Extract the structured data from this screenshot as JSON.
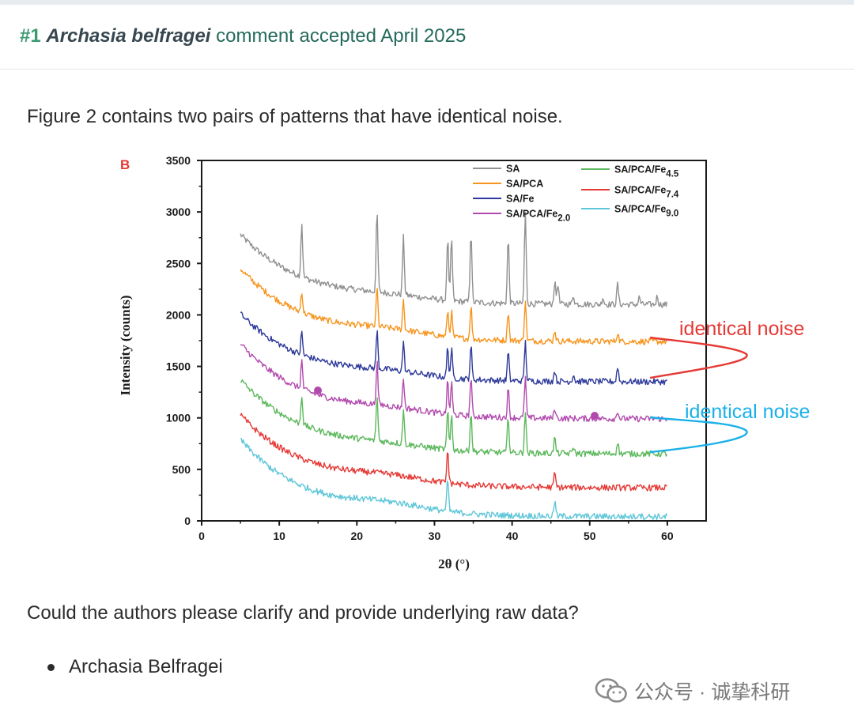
{
  "comment": {
    "number": "#1",
    "author": "Archasia belfragei",
    "status": "comment accepted April 2025"
  },
  "body": {
    "paragraph1": "Figure 2 contains two pairs of patterns that have identical noise.",
    "paragraph2": "Could the authors please clarify and provide underlying raw data?",
    "bullets": [
      "Archasia Belfragei"
    ]
  },
  "figure": {
    "panel_letter": "B",
    "annotations": [
      {
        "text": "identical noise",
        "color": "#e53935"
      },
      {
        "text": "identical noise",
        "color": "#1ab0e8"
      }
    ]
  },
  "chart_data": {
    "type": "line",
    "xlabel": "2θ (°)",
    "ylabel": "Intensity (counts)",
    "xlim": [
      0,
      65
    ],
    "ylim": [
      0,
      3500
    ],
    "xticks": [
      0,
      10,
      20,
      30,
      40,
      50,
      60
    ],
    "yticks": [
      0,
      500,
      1000,
      1500,
      2000,
      2500,
      3000,
      3500
    ],
    "legend_position": "top-right",
    "series": [
      {
        "name": "SA",
        "sub": "",
        "color": "#909090",
        "start": 2780,
        "floor": 2100,
        "bump": 40,
        "peaks": [
          [
            12.9,
            520
          ],
          [
            22.6,
            780
          ],
          [
            26.0,
            560
          ],
          [
            31.7,
            610
          ],
          [
            32.2,
            620
          ],
          [
            34.7,
            700
          ],
          [
            39.5,
            640
          ],
          [
            41.7,
            890
          ],
          [
            45.5,
            210
          ],
          [
            45.9,
            200
          ],
          [
            47.9,
            90
          ],
          [
            51.7,
            70
          ],
          [
            53.6,
            200
          ],
          [
            56.4,
            70
          ],
          [
            58.7,
            80
          ]
        ]
      },
      {
        "name": "SA/PCA",
        "sub": "",
        "color": "#f7941d",
        "start": 2450,
        "floor": 1740,
        "bump": 60,
        "peaks": [
          [
            12.9,
            210
          ],
          [
            22.6,
            380
          ],
          [
            26.0,
            290
          ],
          [
            31.7,
            260
          ],
          [
            32.2,
            250
          ],
          [
            34.7,
            330
          ],
          [
            39.5,
            290
          ],
          [
            41.7,
            400
          ],
          [
            45.5,
            110
          ],
          [
            53.6,
            90
          ]
        ]
      },
      {
        "name": "SA/Fe",
        "sub": "",
        "color": "#2e3a9a",
        "start": 2010,
        "floor": 1350,
        "bump": 50,
        "peaks": [
          [
            12.9,
            220
          ],
          [
            22.6,
            370
          ],
          [
            26.0,
            280
          ],
          [
            31.7,
            300
          ],
          [
            32.2,
            280
          ],
          [
            34.7,
            330
          ],
          [
            39.5,
            280
          ],
          [
            41.7,
            380
          ],
          [
            45.5,
            110
          ],
          [
            47.9,
            70
          ],
          [
            53.6,
            150
          ]
        ]
      },
      {
        "name": "SA/PCA/Fe",
        "sub": "2.0",
        "color": "#b24aae",
        "start": 1720,
        "floor": 990,
        "bump": 50,
        "peaks": [
          [
            12.9,
            280
          ],
          [
            22.6,
            420
          ],
          [
            26.0,
            290
          ],
          [
            31.7,
            330
          ],
          [
            32.2,
            320
          ],
          [
            34.7,
            390
          ],
          [
            39.5,
            280
          ],
          [
            41.7,
            400
          ],
          [
            45.5,
            100
          ],
          [
            53.6,
            80
          ]
        ]
      },
      {
        "name": "SA/PCA/Fe",
        "sub": "4.5",
        "color": "#5cb85c",
        "start": 1370,
        "floor": 650,
        "bump": 40,
        "peaks": [
          [
            12.9,
            290
          ],
          [
            22.6,
            440
          ],
          [
            26.0,
            330
          ],
          [
            31.7,
            380
          ],
          [
            32.2,
            350
          ],
          [
            34.7,
            380
          ],
          [
            39.5,
            350
          ],
          [
            41.7,
            400
          ],
          [
            45.5,
            150
          ],
          [
            47.9,
            70
          ],
          [
            53.6,
            120
          ]
        ]
      },
      {
        "name": "SA/PCA/Fe",
        "sub": "7.4",
        "color": "#e53935",
        "start": 1030,
        "floor": 320,
        "bump": 60,
        "peaks": [
          [
            31.7,
            330
          ],
          [
            45.5,
            140
          ]
        ]
      },
      {
        "name": "SA/PCA/Fe",
        "sub": "9.0",
        "color": "#5ec6d8",
        "start": 790,
        "floor": 40,
        "bump": 70,
        "peaks": [
          [
            31.7,
            320
          ],
          [
            45.5,
            150
          ],
          [
            56.4,
            40
          ]
        ]
      }
    ]
  },
  "watermark": {
    "text": "公众号 · 诚挚科研"
  }
}
